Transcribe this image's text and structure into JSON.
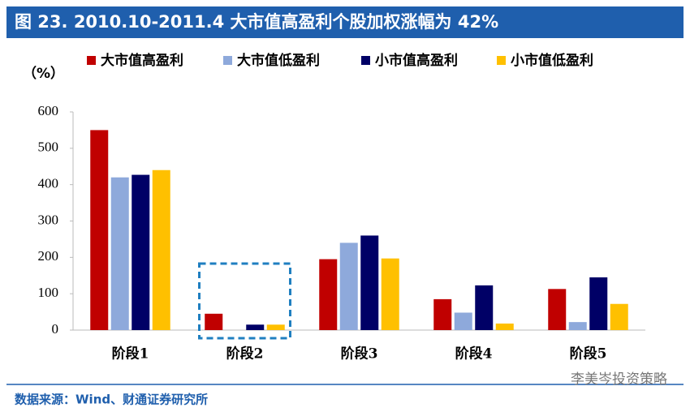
{
  "chart_data": {
    "type": "bar",
    "title": "图 23. 2010.10-2011.4 大市值高盈利个股加权涨幅为 42%",
    "y_label": "（%）",
    "categories": [
      "阶段1",
      "阶段2",
      "阶段3",
      "阶段4",
      "阶段5"
    ],
    "series": [
      {
        "name": "大市值高盈利",
        "color": "#C00000",
        "values": [
          550,
          45,
          195,
          85,
          113
        ]
      },
      {
        "name": "大市值低盈利",
        "color": "#8EA9DB",
        "values": [
          420,
          0,
          240,
          48,
          22
        ]
      },
      {
        "name": "小市值高盈利",
        "color": "#000066",
        "values": [
          427,
          15,
          260,
          123,
          145
        ]
      },
      {
        "name": "小市值低盈利",
        "color": "#FFC000",
        "values": [
          440,
          15,
          197,
          18,
          72
        ]
      }
    ],
    "ylim": [
      0,
      600
    ],
    "yticks": [
      0,
      100,
      200,
      300,
      400,
      500,
      600
    ],
    "grid": false,
    "source": "数据来源：Wind、财通证券研究所",
    "watermark": "李美岑投资策略"
  }
}
